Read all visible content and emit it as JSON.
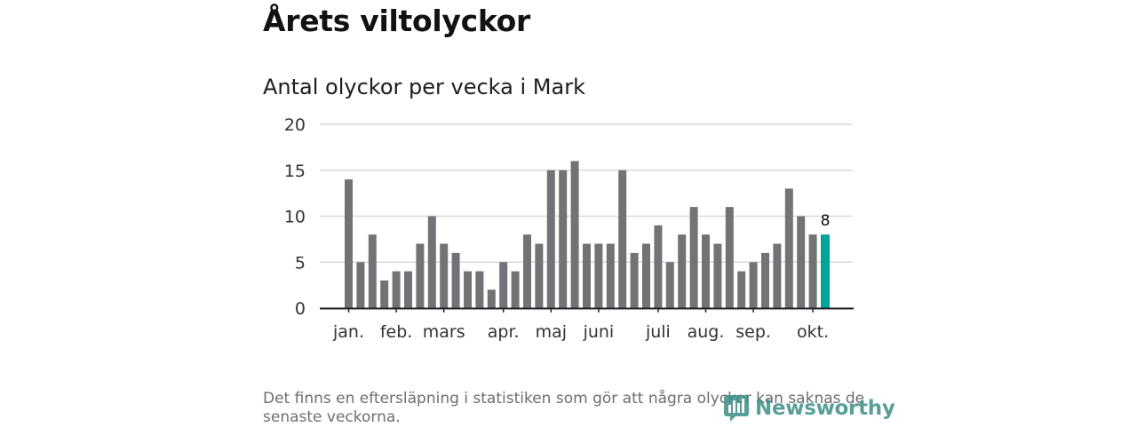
{
  "page": {
    "title": "Årets viltolyckor",
    "subtitle": "Antal olyckor per vecka i Mark",
    "footnote": "Det finns en eftersläpning i statistiken som gör att några olyckor kan saknas de senaste veckorna.",
    "brand": "Newsworthy"
  },
  "colors": {
    "bar": "#737276",
    "highlight": "#00a59a",
    "grid": "#d9d9d9",
    "axis": "#222222"
  },
  "chart_data": {
    "type": "bar",
    "title": "Antal olyckor per vecka i Mark",
    "xlabel": "",
    "ylabel": "",
    "ylim": [
      0,
      20
    ],
    "yticks": [
      "0",
      "5",
      "10",
      "15",
      "20"
    ],
    "values": [
      14,
      5,
      8,
      3,
      4,
      4,
      7,
      10,
      7,
      6,
      4,
      4,
      2,
      5,
      4,
      8,
      7,
      15,
      15,
      16,
      7,
      7,
      7,
      15,
      6,
      7,
      9,
      5,
      8,
      11,
      8,
      7,
      11,
      4,
      5,
      6,
      7,
      13,
      10,
      8,
      8
    ],
    "highlight_index": 40,
    "highlight_label": "8",
    "month_labels": [
      {
        "label": "jan.",
        "bar": 0
      },
      {
        "label": "feb.",
        "bar": 4
      },
      {
        "label": "mars",
        "bar": 8
      },
      {
        "label": "apr.",
        "bar": 13
      },
      {
        "label": "maj",
        "bar": 17
      },
      {
        "label": "juni",
        "bar": 21
      },
      {
        "label": "juli",
        "bar": 26
      },
      {
        "label": "aug.",
        "bar": 30
      },
      {
        "label": "sep.",
        "bar": 34
      },
      {
        "label": "okt.",
        "bar": 39
      }
    ],
    "grid": true,
    "legend": "none"
  }
}
